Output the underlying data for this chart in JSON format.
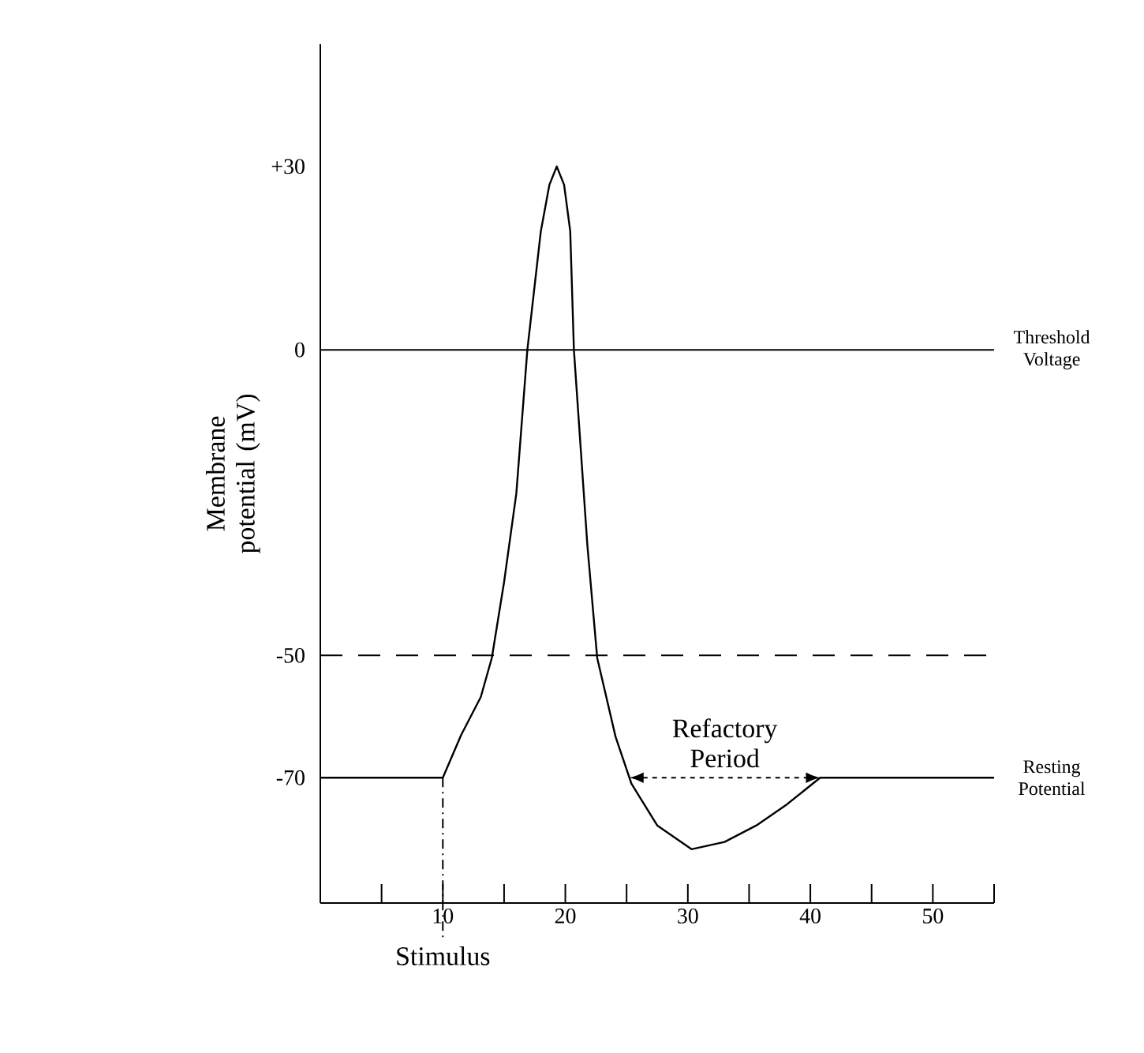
{
  "chart_data": {
    "type": "line",
    "ylabel": "Membrane potential (mV)",
    "xlim": [
      0,
      55
    ],
    "ylim": [
      -90.5,
      50
    ],
    "xticks": [
      {
        "value": 5,
        "label": null
      },
      10,
      {
        "value": 15,
        "label": null
      },
      20,
      {
        "value": 25,
        "label": null
      },
      30,
      {
        "value": 35,
        "label": null
      },
      40,
      {
        "value": 45,
        "label": null
      },
      50,
      {
        "value": 55,
        "label": null
      }
    ],
    "yticks": [
      {
        "value": 30,
        "label": "+30"
      },
      0,
      -50,
      -70
    ],
    "series": [
      {
        "color": "#000000",
        "x": [
          0,
          10,
          11.5,
          13.1,
          14,
          15,
          16,
          16.9,
          18,
          18.7,
          19.3,
          19.9,
          20.4,
          20.7,
          21.8,
          22.6,
          24.1,
          25.4,
          27.5,
          30.3,
          33,
          35.6,
          38,
          40.8,
          55
        ],
        "values": [
          -70,
          -70,
          -63,
          -56.8,
          -50.4,
          -38,
          -23.5,
          0,
          19.4,
          27,
          30,
          27,
          19.4,
          0,
          -32,
          -50.4,
          -63.3,
          -71,
          -77.8,
          -81.7,
          -80.5,
          -77.8,
          -74.5,
          -70,
          -70
        ]
      }
    ],
    "ref_lines": [
      {
        "axis": "y",
        "value": 0,
        "label": "Threshold Voltage",
        "line_style": "solid"
      },
      {
        "axis": "y",
        "value": -50,
        "line_style": "dashed"
      },
      {
        "axis": "x",
        "value": 10,
        "label": "Stimulus",
        "line_style": "dashdot"
      }
    ],
    "annotations": [
      "Refactory Period",
      {
        "text": "Resting Potential",
        "x": 55,
        "y": -70
      }
    ]
  }
}
